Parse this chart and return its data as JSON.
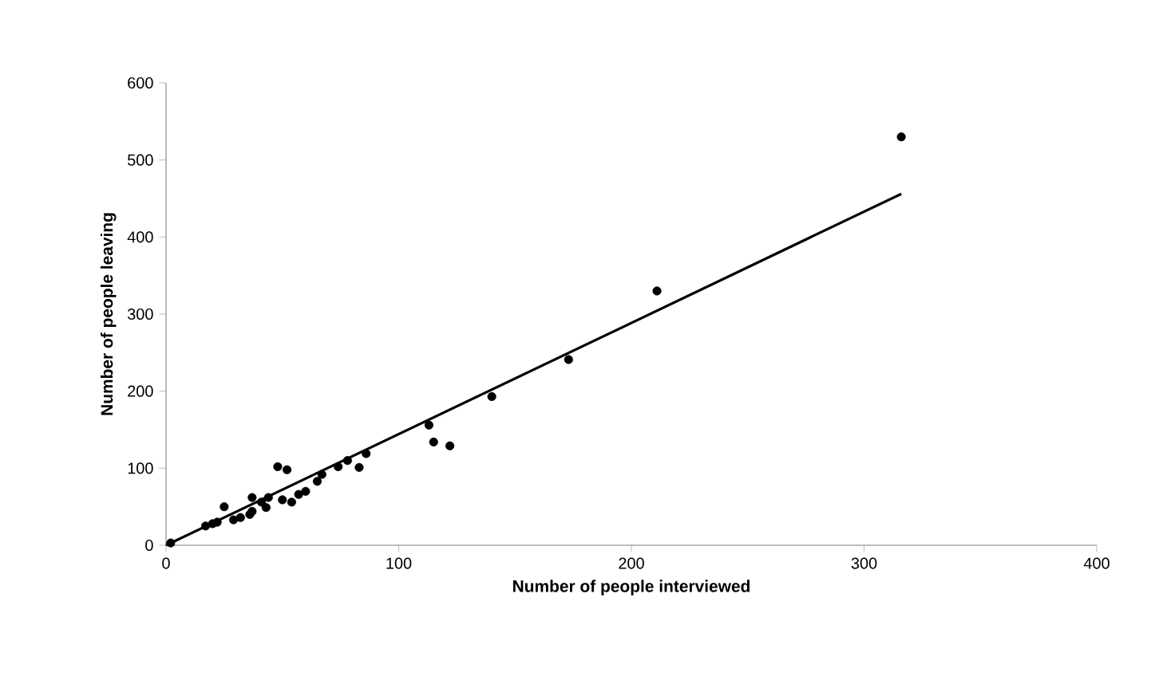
{
  "chart_data": {
    "type": "scatter",
    "xlabel": "Number of people interviewed",
    "ylabel": "Number of people leaving",
    "xlim": [
      0,
      400
    ],
    "ylim": [
      0,
      600
    ],
    "xticks": [
      0,
      100,
      200,
      300,
      400
    ],
    "yticks": [
      0,
      100,
      200,
      300,
      400,
      500,
      600
    ],
    "grid": false,
    "series": [
      {
        "color": "#000000",
        "marker": "circle",
        "x": [
          2,
          316,
          211,
          173,
          140,
          113,
          115,
          122,
          86,
          78,
          74,
          83,
          67,
          65,
          60,
          57,
          50,
          54,
          48,
          52,
          44,
          37,
          43,
          37,
          25,
          36,
          32,
          29,
          22,
          20,
          17,
          41
        ],
        "values": [
          3,
          530,
          330,
          241,
          193,
          156,
          134,
          129,
          119,
          110,
          102,
          101,
          92,
          83,
          70,
          66,
          59,
          56,
          102,
          98,
          62,
          62,
          49,
          44,
          50,
          40,
          36,
          33,
          30,
          28,
          25,
          56
        ]
      },
      {
        "type": "line",
        "color": "#000000",
        "marker": "none",
        "line_style": "solid",
        "x": [
          0,
          316
        ],
        "values": [
          0,
          456
        ]
      }
    ]
  }
}
